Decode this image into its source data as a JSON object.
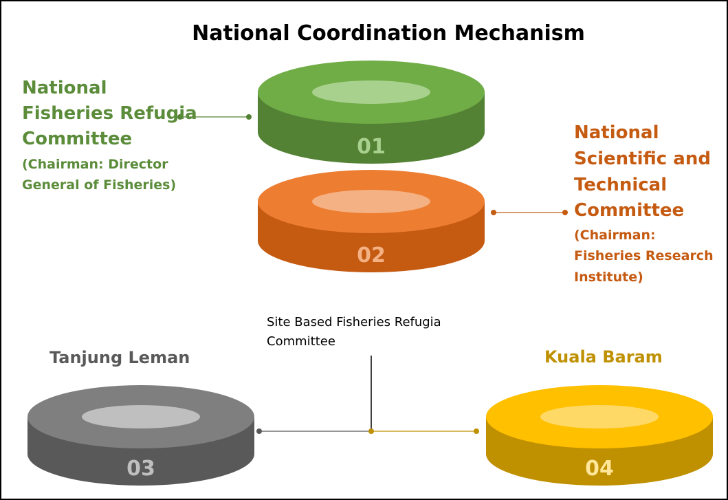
{
  "title": "National Coordination Mechanism",
  "nodes": [
    {
      "number": "01",
      "label": [
        "National",
        "Fisheries Refugia",
        "Committee"
      ],
      "sublabel": [
        "(Chairman: Director",
        "General of Fisheries)"
      ]
    },
    {
      "number": "02",
      "label": [
        "National",
        "Scientific and",
        "Technical",
        "Committee"
      ],
      "sublabel": [
        "(Chairman:",
        "Fisheries Research",
        "Institute)"
      ]
    },
    {
      "number": "03",
      "label": [
        "Tanjung Leman"
      ]
    },
    {
      "number": "04",
      "label": [
        "Kuala Baram"
      ]
    }
  ],
  "site_label": [
    "Site Based Fisheries Refugia",
    "Committee"
  ]
}
